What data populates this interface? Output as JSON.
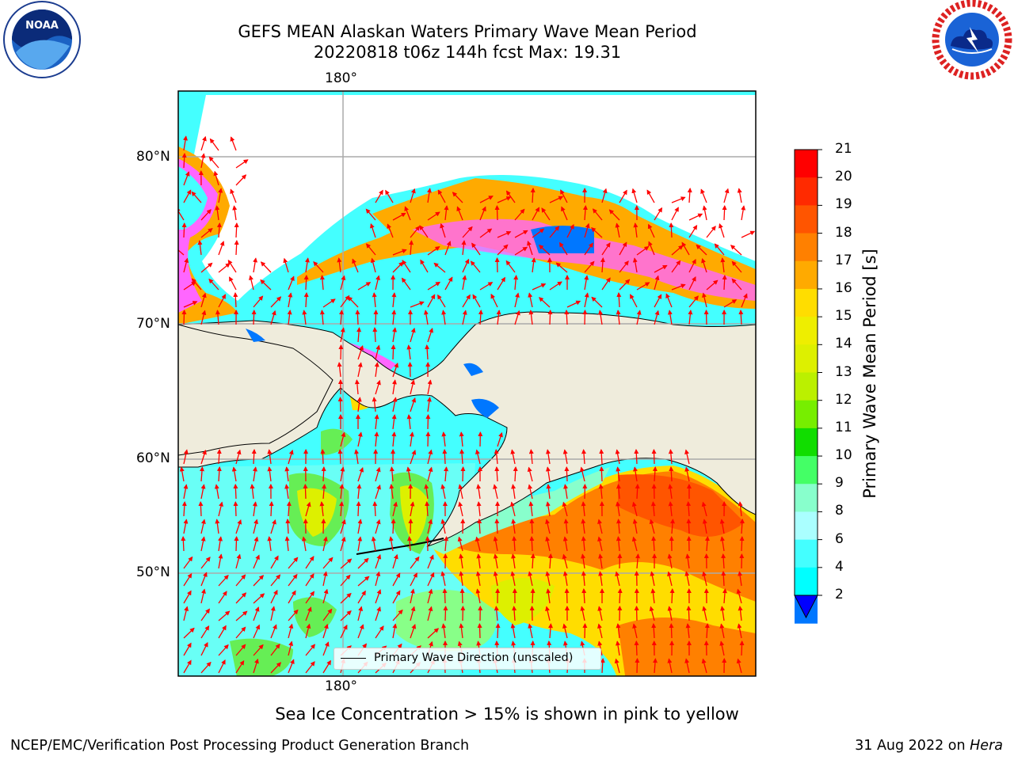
{
  "header": {
    "title_line1": "GEFS MEAN Alaskan Waters Primary Wave Mean Period",
    "title_line2": "20220818 t06z 144h fcst   Max: 19.31"
  },
  "logos": {
    "noara_text": "NOAA",
    "noaa_ring_text": "NATIONAL OCEANIC AND ATMOSPHERIC ADMINISTRATION · U.S. DEPARTMENT OF COMMERCE",
    "nws_ring_text": "NATIONAL WEATHER SERVICE"
  },
  "map": {
    "lon_labels": [
      "180°",
      "180°"
    ],
    "lat_labels": [
      "80°N",
      "70°N",
      "60°N",
      "50°N"
    ],
    "legend_label": "Primary Wave Direction (unscaled)"
  },
  "colorbar": {
    "title": "Primary Wave Mean Period [s]",
    "ticks": [
      "21",
      "20",
      "19",
      "18",
      "17",
      "16",
      "15",
      "14",
      "13",
      "12",
      "11",
      "10",
      "9",
      "8",
      "6",
      "4",
      "2"
    ],
    "colors": [
      "#ff0000",
      "#ff2a00",
      "#ff5500",
      "#ff8000",
      "#ffaa00",
      "#ffdd00",
      "#eeee00",
      "#ddf000",
      "#bbf000",
      "#77ee00",
      "#11dd00",
      "#44ff66",
      "#88ffcc",
      "#aaffff",
      "#44ffff",
      "#00ffff",
      "#0077ff"
    ],
    "extend_color": "#0000ff"
  },
  "caption": "Sea Ice Concentration > 15% is shown in pink to yellow",
  "footer": {
    "left": "NCEP/EMC/Verification Post Processing Product Generation Branch",
    "right_date": "31 Aug 2022 on ",
    "right_machine": "Hera"
  }
}
